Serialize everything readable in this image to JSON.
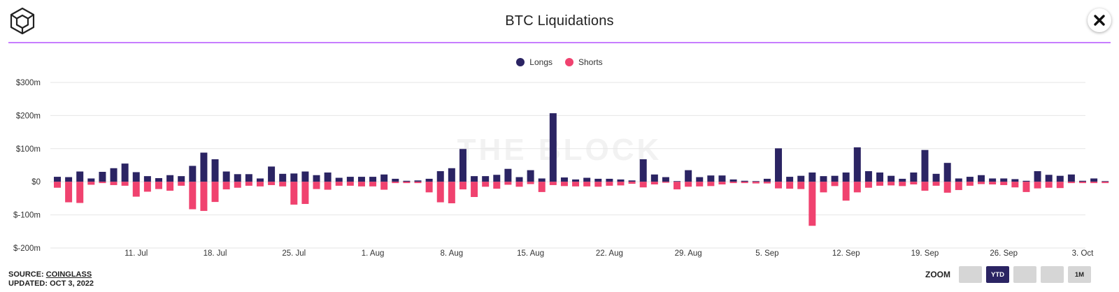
{
  "header": {
    "title": "BTC Liquidations",
    "logo_icon": "the-block-cube-logo-icon",
    "close_icon": "close-x-icon",
    "accent_color": "#c77dff"
  },
  "legend": [
    {
      "label": "Longs",
      "color": "#2b2463"
    },
    {
      "label": "Shorts",
      "color": "#f0426f"
    }
  ],
  "watermark": "THE BLOCK",
  "footer": {
    "source_prefix": "SOURCE: ",
    "source_name": "COINGLASS",
    "updated": "UPDATED: OCT 3, 2022"
  },
  "zoom": {
    "label": "ZOOM",
    "buttons": [
      "",
      "YTD",
      "",
      "",
      "1M"
    ],
    "active": "YTD"
  },
  "chart_data": {
    "type": "bar",
    "stacked": "diverging",
    "ylim": [
      -200,
      300
    ],
    "y_ticks": [
      -200,
      -100,
      0,
      100,
      200,
      300
    ],
    "y_tick_labels": [
      "$-200m",
      "$-100m",
      "$0",
      "$100m",
      "$200m",
      "$300m"
    ],
    "x_start": "2022-07-04",
    "x_end": "2022-10-03",
    "x_ticks": [
      {
        "date": "2022-07-11",
        "label": "11. Jul"
      },
      {
        "date": "2022-07-18",
        "label": "18. Jul"
      },
      {
        "date": "2022-07-25",
        "label": "25. Jul"
      },
      {
        "date": "2022-08-01",
        "label": "1. Aug"
      },
      {
        "date": "2022-08-08",
        "label": "8. Aug"
      },
      {
        "date": "2022-08-15",
        "label": "15. Aug"
      },
      {
        "date": "2022-08-22",
        "label": "22. Aug"
      },
      {
        "date": "2022-08-29",
        "label": "29. Aug"
      },
      {
        "date": "2022-09-05",
        "label": "5. Sep"
      },
      {
        "date": "2022-09-12",
        "label": "12. Sep"
      },
      {
        "date": "2022-09-19",
        "label": "19. Sep"
      },
      {
        "date": "2022-09-26",
        "label": "26. Sep"
      },
      {
        "date": "2022-10-03",
        "label": "3. Oct"
      }
    ],
    "grid": true,
    "legend_position": "top-center",
    "series": [
      {
        "name": "Longs",
        "color": "#2b2463",
        "values": [
          15,
          14,
          31,
          10,
          30,
          41,
          55,
          29,
          17,
          11,
          20,
          17,
          48,
          88,
          68,
          31,
          23,
          23,
          10,
          46,
          24,
          25,
          31,
          20,
          28,
          12,
          15,
          15,
          15,
          22,
          9,
          3,
          4,
          9,
          32,
          41,
          99,
          17,
          17,
          21,
          39,
          14,
          35,
          10,
          207,
          13,
          7,
          12,
          9,
          9,
          7,
          4,
          68,
          22,
          14,
          2,
          35,
          14,
          19,
          19,
          7,
          3,
          2,
          9,
          101,
          15,
          18,
          28,
          17,
          18,
          28,
          104,
          32,
          28,
          18,
          9,
          28,
          96,
          24,
          57,
          10,
          15,
          20,
          10,
          10,
          8,
          3,
          32,
          21,
          18,
          22,
          3,
          10,
          2
        ]
      },
      {
        "name": "Shorts",
        "color": "#f0426f",
        "values": [
          -18,
          -62,
          -64,
          -9,
          -4,
          -10,
          -12,
          -45,
          -30,
          -22,
          -27,
          -12,
          -83,
          -88,
          -61,
          -23,
          -18,
          -12,
          -14,
          -10,
          -14,
          -69,
          -67,
          -22,
          -24,
          -12,
          -12,
          -14,
          -14,
          -24,
          -4,
          -4,
          -4,
          -32,
          -62,
          -65,
          -23,
          -46,
          -15,
          -21,
          -9,
          -15,
          -7,
          -31,
          -10,
          -13,
          -14,
          -14,
          -15,
          -12,
          -11,
          -6,
          -17,
          -8,
          -3,
          -23,
          -15,
          -14,
          -13,
          -8,
          -4,
          -4,
          -5,
          -5,
          -20,
          -21,
          -22,
          -133,
          -32,
          -13,
          -57,
          -32,
          -18,
          -12,
          -11,
          -13,
          -8,
          -27,
          -12,
          -33,
          -25,
          -12,
          -7,
          -8,
          -10,
          -17,
          -31,
          -20,
          -18,
          -19,
          -4,
          -4,
          -4,
          -4
        ]
      }
    ]
  }
}
